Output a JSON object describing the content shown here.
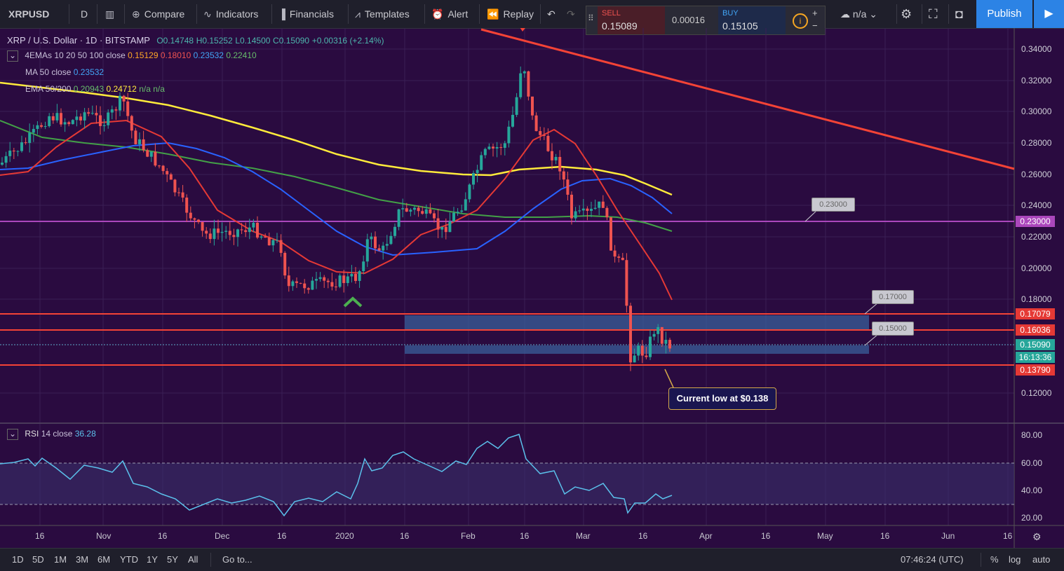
{
  "toolbar": {
    "symbol": "XRPUSD",
    "interval": "D",
    "compare": "Compare",
    "indicators": "Indicators",
    "financials": "Financials",
    "templates": "Templates",
    "alert": "Alert",
    "replay": "Replay",
    "layout_value": "n/a",
    "publish": "Publish"
  },
  "trade": {
    "sell_label": "SELL",
    "sell_price": "0.15089",
    "spread": "0.00016",
    "buy_label": "BUY",
    "buy_price": "0.15105"
  },
  "legend": {
    "title": "XRP / U.S. Dollar · 1D · BITSTAMP",
    "open": "O0.14748",
    "high": "H0.15252",
    "low": "L0.14500",
    "close": "C0.15090",
    "change": "+0.00316 (+2.14%)",
    "ema4_label": "4EMAs 10 20 50 100 close",
    "ema4_v1": "0.15129",
    "ema4_v2": "0.18010",
    "ema4_v3": "0.23532",
    "ema4_v4": "0.22410",
    "ma_label": "MA 50 close",
    "ma_v": "0.23532",
    "ema2_label": "EMA 50/200",
    "ema2_v1": "0.20943",
    "ema2_v2": "0.24712",
    "ema2_v3": "n/a",
    "ema2_v4": "n/a",
    "rsi_label": "RSI",
    "rsi_params": "14 close",
    "rsi_v": "36.28"
  },
  "price_axis": [
    "0.34000",
    "0.32000",
    "0.30000",
    "0.28000",
    "0.26000",
    "0.24000",
    "0.22000",
    "0.20000",
    "0.18000",
    "0.12000"
  ],
  "price_tags": {
    "t230": "0.23000",
    "t17079": "0.17079",
    "t16036": "0.16036",
    "t15090": "0.15090",
    "countdown": "16:13:36",
    "t13790": "0.13790"
  },
  "rsi_axis": [
    "80.00",
    "60.00",
    "40.00",
    "20.00"
  ],
  "time_axis": [
    "16",
    "Nov",
    "16",
    "Dec",
    "16",
    "2020",
    "16",
    "Feb",
    "16",
    "Mar",
    "16",
    "Apr",
    "16",
    "May",
    "16",
    "Jun",
    "16"
  ],
  "callouts": {
    "c230": "0.23000",
    "c170": "0.17000",
    "c150": "0.15000",
    "note": "Current low at $0.138"
  },
  "bottom": {
    "ranges": [
      "1D",
      "5D",
      "1M",
      "3M",
      "6M",
      "YTD",
      "1Y",
      "5Y",
      "All"
    ],
    "goto": "Go to...",
    "clock": "07:46:24 (UTC)",
    "pct": "%",
    "log": "log",
    "auto": "auto"
  },
  "colors": {
    "background": "#2a0b40",
    "up": "#26a69a",
    "down": "#ef5350",
    "ema10": "#ffa726",
    "ema20": "#e53935",
    "ema50": "#2962ff",
    "ema100": "#43a047",
    "ema200": "#ffeb3b",
    "resistance": "#f44336",
    "level": "#ab47bc"
  }
}
